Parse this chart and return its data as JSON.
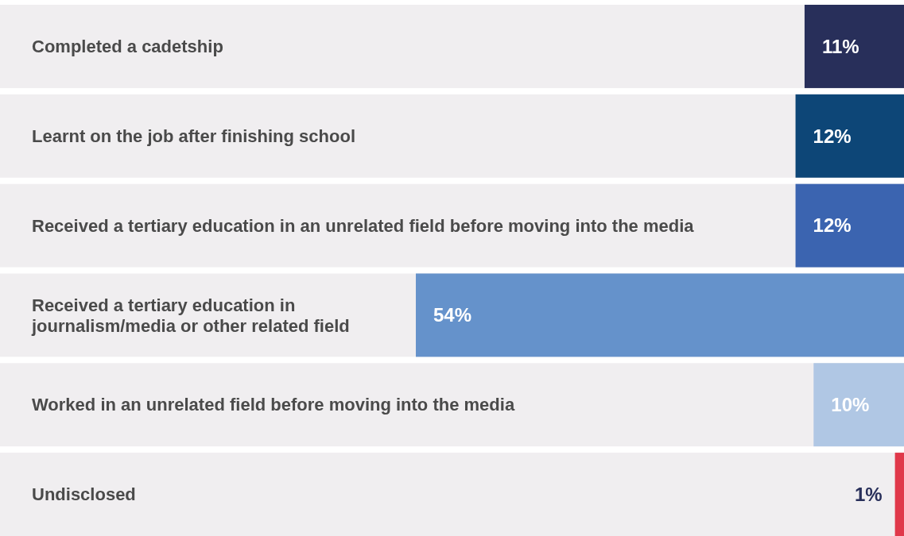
{
  "chart_data": {
    "type": "bar",
    "orientation": "horizontal",
    "categories": [
      "Completed a cadetship",
      "Learnt on the job after finishing school",
      "Received a tertiary education in an unrelated field before moving into the media",
      "Received a tertiary education in journalism/media or other related field",
      "Worked in an unrelated field before moving into the media",
      "Undisclosed"
    ],
    "values": [
      11,
      12,
      12,
      54,
      10,
      1
    ],
    "value_labels": [
      "11%",
      "12%",
      "12%",
      "54%",
      "10%",
      "1%"
    ],
    "colors": [
      "#282f5a",
      "#0d4677",
      "#3b64b0",
      "#6592cb",
      "#b0c7e4",
      "#e0384a"
    ],
    "xlim": [
      100,
      0
    ]
  }
}
